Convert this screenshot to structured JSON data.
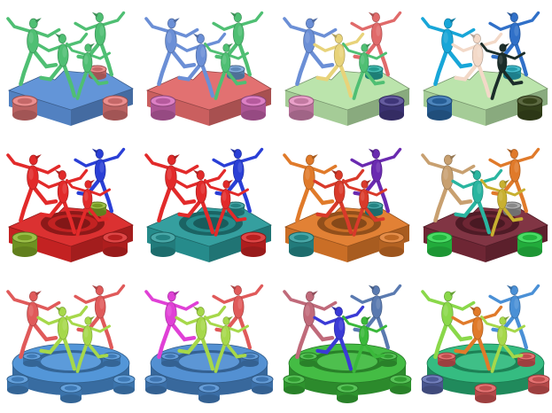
{
  "grid": {
    "rows": 3,
    "cols": 4,
    "cells": [
      {
        "row": 0,
        "col": 0,
        "scene": "puzzle-piece",
        "palette": {
          "base": "#5b8fd6",
          "cyl_left": "#e87a7a",
          "cyl_right": "#e87a7a",
          "cyl_back": "#e87a7a",
          "dancer_a": "#4fbf73",
          "dancer_b": "#4fbf73",
          "dancer_c": "#4fbf73",
          "dancer_d": "#4fbf73"
        }
      },
      {
        "row": 0,
        "col": 1,
        "scene": "puzzle-piece",
        "palette": {
          "base": "#e06a6a",
          "cyl_left": "#d66ab9",
          "cyl_right": "#d66ab9",
          "cyl_back": "#6fa0d8",
          "dancer_a": "#6b8fd6",
          "dancer_b": "#6b8fd6",
          "dancer_c": "#4fbf73",
          "dancer_d": "#4fbf73"
        }
      },
      {
        "row": 0,
        "col": 2,
        "scene": "puzzle-piece",
        "palette": {
          "base": "#b7e3a8",
          "cyl_left": "#e58fbf",
          "cyl_right": "#4a3f8e",
          "cyl_back": "#2ab5a8",
          "dancer_a": "#6b8fd6",
          "dancer_b": "#e8d37a",
          "dancer_c": "#e06a6a",
          "dancer_d": "#4fbf73"
        }
      },
      {
        "row": 0,
        "col": 3,
        "scene": "puzzle-piece",
        "palette": {
          "base": "#b7e3a8",
          "cyl_left": "#2e6fb0",
          "cyl_right": "#3f4f1f",
          "cyl_back": "#2ab5c8",
          "dancer_a": "#18a6d8",
          "dancer_b": "#f3d9c8",
          "dancer_c": "#3070c8",
          "dancer_d": "#1b2d2a"
        }
      },
      {
        "row": 1,
        "col": 0,
        "scene": "puzzle-ring",
        "palette": {
          "base": "#d92626",
          "cyl_left": "#8ab52a",
          "cyl_right": "#d92626",
          "cyl_back": "#8ab52a",
          "dancer_a": "#e22a2a",
          "dancer_b": "#e22a2a",
          "dancer_c": "#2a3fd6",
          "dancer_d": "#e22a2a"
        }
      },
      {
        "row": 1,
        "col": 1,
        "scene": "puzzle-ring",
        "palette": {
          "base": "#2a9a9a",
          "cyl_left": "#2a9a9a",
          "cyl_right": "#d92626",
          "cyl_back": "#2a9a9a",
          "dancer_a": "#e22a2a",
          "dancer_b": "#e22a2a",
          "dancer_c": "#2a3fd6",
          "dancer_d": "#e22a2a"
        }
      },
      {
        "row": 1,
        "col": 2,
        "scene": "puzzle-ring",
        "palette": {
          "base": "#e07a2a",
          "cyl_left": "#2a9a9a",
          "cyl_right": "#e07a2a",
          "cyl_back": "#2a9a9a",
          "dancer_a": "#e07a2a",
          "dancer_b": "#d93a2a",
          "dancer_c": "#6a2ab0",
          "dancer_d": "#d93a2a"
        }
      },
      {
        "row": 1,
        "col": 3,
        "scene": "puzzle-ring",
        "palette": {
          "base": "#7a2a3a",
          "cyl_left": "#2ad64a",
          "cyl_right": "#2ad64a",
          "cyl_back": "#a0a0a0",
          "dancer_a": "#c8a070",
          "dancer_b": "#2ab5a0",
          "dancer_c": "#e07a2a",
          "dancer_d": "#c8b030"
        }
      },
      {
        "row": 2,
        "col": 0,
        "scene": "gear",
        "palette": {
          "base": "#4a90d6",
          "cyl_left": "#4a90d6",
          "cyl_right": "#4a90d6",
          "cyl_back": "#4a90d6",
          "dancer_a": "#e05a5a",
          "dancer_b": "#a6d84a",
          "dancer_c": "#e05a5a",
          "dancer_d": "#a6d84a"
        }
      },
      {
        "row": 2,
        "col": 1,
        "scene": "gear",
        "palette": {
          "base": "#4a8ad0",
          "cyl_left": "#4a8ad0",
          "cyl_right": "#4a8ad0",
          "cyl_back": "#4a8ad0",
          "dancer_a": "#e040d6",
          "dancer_b": "#a6d84a",
          "dancer_c": "#e05a5a",
          "dancer_d": "#a6d84a"
        }
      },
      {
        "row": 2,
        "col": 2,
        "scene": "gear",
        "palette": {
          "base": "#3ab83a",
          "cyl_left": "#3ab83a",
          "cyl_right": "#3ab83a",
          "cyl_back": "#3ab83a",
          "dancer_a": "#c06a7a",
          "dancer_b": "#3a3ad6",
          "dancer_c": "#5a7ab0",
          "dancer_d": "#3ab83a"
        }
      },
      {
        "row": 2,
        "col": 3,
        "scene": "gear",
        "palette": {
          "base": "#2ab87a",
          "cyl_left": "#5a6ab0",
          "cyl_right": "#e05a5a",
          "cyl_back": "#e05a5a",
          "dancer_a": "#8ad84a",
          "dancer_b": "#e07a2a",
          "dancer_c": "#4a90d6",
          "dancer_d": "#a6d84a"
        }
      }
    ]
  }
}
